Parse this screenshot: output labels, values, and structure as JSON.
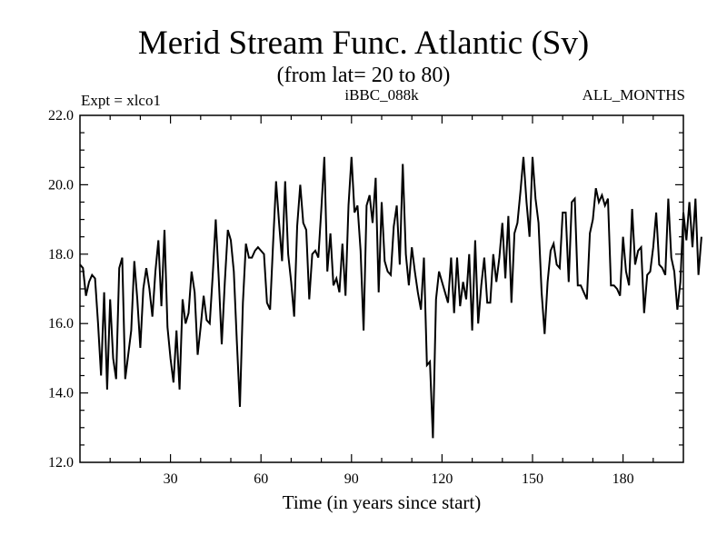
{
  "chart_data": {
    "type": "line",
    "title": "Merid Stream Func. Atlantic (Sv)",
    "subtitle": "(from lat= 20 to 80)",
    "label_left": "Expt = xlco1",
    "label_center": "iBBC_088k",
    "label_right": "ALL_MONTHS",
    "xlabel": "Time (in years since start)",
    "ylabel": "",
    "xlim": [
      0,
      200
    ],
    "ylim": [
      12.0,
      22.0
    ],
    "x_ticks": [
      30,
      60,
      90,
      120,
      150,
      180
    ],
    "x_tick_labels": [
      "30",
      "60",
      "90",
      "120",
      "150",
      "180"
    ],
    "y_ticks": [
      12.0,
      14.0,
      16.0,
      18.0,
      20.0,
      22.0
    ],
    "y_tick_labels": [
      "12.0",
      "14.0",
      "16.0",
      "18.0",
      "20.0",
      "22.0"
    ],
    "grid": false,
    "series": [
      {
        "name": "Merid Stream Func. Atlantic",
        "x_start": 0,
        "x_step": 1,
        "values": [
          17.7,
          17.6,
          16.8,
          17.2,
          17.4,
          17.3,
          16.0,
          14.5,
          16.9,
          14.1,
          16.7,
          15.0,
          14.4,
          17.6,
          17.9,
          14.4,
          15.1,
          15.8,
          17.8,
          16.7,
          15.3,
          17.0,
          17.6,
          17.0,
          16.2,
          17.5,
          18.4,
          16.5,
          18.7,
          15.9,
          15.0,
          14.3,
          15.8,
          14.1,
          16.7,
          16.0,
          16.3,
          17.5,
          16.9,
          15.1,
          15.9,
          16.8,
          16.1,
          16.0,
          17.4,
          19.0,
          17.3,
          15.4,
          17.2,
          18.7,
          18.4,
          17.5,
          15.5,
          13.6,
          16.6,
          18.3,
          17.9,
          17.9,
          18.1,
          18.2,
          18.1,
          18.0,
          16.6,
          16.4,
          18.3,
          20.1,
          18.9,
          17.8,
          20.1,
          18.0,
          17.2,
          16.2,
          18.8,
          20.0,
          18.9,
          18.7,
          16.7,
          18.0,
          18.1,
          17.9,
          19.3,
          20.8,
          17.5,
          18.6,
          17.1,
          17.3,
          16.9,
          18.3,
          16.8,
          19.4,
          20.8,
          19.2,
          19.4,
          18.1,
          15.8,
          19.4,
          19.7,
          18.9,
          20.2,
          16.9,
          19.5,
          17.8,
          17.5,
          17.4,
          18.8,
          19.4,
          17.7,
          20.6,
          18.0,
          17.1,
          18.2,
          17.5,
          16.9,
          16.4,
          17.9,
          14.8,
          14.9,
          12.7,
          16.7,
          17.5,
          17.2,
          16.9,
          16.6,
          17.9,
          16.3,
          17.9,
          16.5,
          17.2,
          16.7,
          18.0,
          15.8,
          18.4,
          16.0,
          17.1,
          17.9,
          16.6,
          16.6,
          18.0,
          17.2,
          17.9,
          18.9,
          17.3,
          19.1,
          16.6,
          18.6,
          18.9,
          19.8,
          20.8,
          19.5,
          18.5,
          20.8,
          19.6,
          18.9,
          16.9,
          15.7,
          17.2,
          18.1,
          18.3,
          17.7,
          17.6,
          19.2,
          19.2,
          17.2,
          19.5,
          19.6,
          17.1,
          17.1,
          16.9,
          16.7,
          18.6,
          19.0,
          19.9,
          19.5,
          19.7,
          19.4,
          19.6,
          17.1,
          17.1,
          17.0,
          16.8,
          18.5,
          17.5,
          17.1,
          19.3,
          17.7,
          18.1,
          18.2,
          16.3,
          17.4,
          17.5,
          18.2,
          19.2,
          17.7,
          17.6,
          17.4,
          19.6,
          17.9,
          17.5,
          16.4,
          17.2,
          19.2,
          18.4,
          19.5,
          18.2,
          19.6,
          17.4,
          18.5
        ]
      }
    ]
  },
  "colors": {
    "line": "#000000",
    "axis": "#000000",
    "background": "#ffffff"
  }
}
